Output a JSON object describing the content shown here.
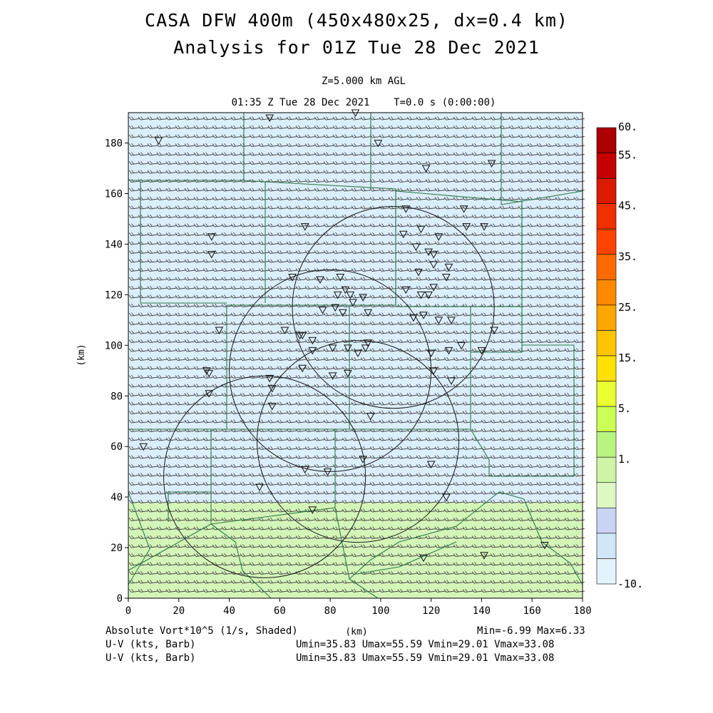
{
  "title_line1": "CASA DFW 400m (450x480x25, dx=0.4 km)",
  "title_line2": "Analysis for 01Z Tue 28 Dec 2021",
  "level": "Z=5.000 km AGL",
  "valid_time": "01:35 Z Tue 28 Dec 2021    T=0.0 s (0:00:00)",
  "axes": {
    "xlabel": "(km)",
    "ylabel": "(km)",
    "xlim": [
      0,
      180
    ],
    "ylim": [
      0,
      192
    ],
    "xticks": [
      "0",
      "20",
      "40",
      "60",
      "80",
      "100",
      "120",
      "140",
      "160",
      "180"
    ],
    "yticks": [
      "0",
      "20",
      "40",
      "60",
      "80",
      "100",
      "120",
      "140",
      "160",
      "180"
    ]
  },
  "colorbar": {
    "labels": [
      "60.",
      "55.",
      "45.",
      "35.",
      "25.",
      "15.",
      "5.",
      "1.",
      "-10."
    ],
    "colors": [
      "#aa0000",
      "#c40000",
      "#dc1a00",
      "#f03000",
      "#ff4400",
      "#ff6a00",
      "#ff8a00",
      "#ffa500",
      "#ffc400",
      "#ffe000",
      "#eaff30",
      "#ccff55",
      "#b8f580",
      "#ccf5a5",
      "#ddf8c5",
      "#c9d4f5",
      "#d2e6f7",
      "#e2f3fb"
    ]
  },
  "field": {
    "name": "Absolute Vort*10^5 (1/s, Shaded)",
    "min_max": "Min=-6.99 Max=6.33",
    "background_color": "#dbeefb",
    "south_band_color": "#d4f5b8",
    "wind_line1_label": "U-V (kts, Barb)",
    "wind_line1_stats": "Umin=35.83 Umax=55.59 Vmin=29.01 Vmax=33.08",
    "wind_line2_label": "U-V (kts, Barb)",
    "wind_line2_stats": "Umin=35.83 Umax=55.59 Vmin=29.01 Vmax=33.08"
  },
  "radar_rings": [
    {
      "cx_km": 105,
      "cy_km": 115,
      "r_km": 40
    },
    {
      "cx_km": 80,
      "cy_km": 90,
      "r_km": 40
    },
    {
      "cx_km": 91,
      "cy_km": 62,
      "r_km": 40
    },
    {
      "cx_km": 54,
      "cy_km": 48,
      "r_km": 40
    }
  ],
  "station_markers_km": [
    [
      56,
      190
    ],
    [
      90,
      192
    ],
    [
      12,
      181
    ],
    [
      99,
      180
    ],
    [
      118,
      170
    ],
    [
      144,
      172
    ],
    [
      33,
      143
    ],
    [
      33,
      136
    ],
    [
      70,
      147
    ],
    [
      110,
      154
    ],
    [
      133,
      154
    ],
    [
      134,
      147
    ],
    [
      141,
      147
    ],
    [
      109,
      144
    ],
    [
      116,
      146
    ],
    [
      123,
      143
    ],
    [
      114,
      139
    ],
    [
      119,
      137
    ],
    [
      121,
      136
    ],
    [
      121,
      132
    ],
    [
      127,
      131
    ],
    [
      115,
      129
    ],
    [
      126,
      127
    ],
    [
      65,
      127
    ],
    [
      76,
      126
    ],
    [
      84,
      127
    ],
    [
      86,
      122
    ],
    [
      83,
      120
    ],
    [
      88,
      120
    ],
    [
      89,
      117
    ],
    [
      93,
      119
    ],
    [
      110,
      122
    ],
    [
      116,
      120
    ],
    [
      119,
      120
    ],
    [
      121,
      123
    ],
    [
      82,
      115
    ],
    [
      77,
      114
    ],
    [
      85,
      113
    ],
    [
      95,
      113
    ],
    [
      113,
      111
    ],
    [
      117,
      112
    ],
    [
      123,
      110
    ],
    [
      128,
      110
    ],
    [
      36,
      106
    ],
    [
      62,
      106
    ],
    [
      69,
      104
    ],
    [
      73,
      102
    ],
    [
      68,
      104
    ],
    [
      73,
      98
    ],
    [
      81,
      99
    ],
    [
      87,
      99
    ],
    [
      91,
      97
    ],
    [
      94,
      99
    ],
    [
      95,
      101
    ],
    [
      120,
      97
    ],
    [
      127,
      98
    ],
    [
      132,
      100
    ],
    [
      140,
      98
    ],
    [
      145,
      106
    ],
    [
      31,
      90
    ],
    [
      32,
      89
    ],
    [
      69,
      91
    ],
    [
      81,
      88
    ],
    [
      87,
      89
    ],
    [
      121,
      90
    ],
    [
      128,
      86
    ],
    [
      32,
      81
    ],
    [
      56,
      87
    ],
    [
      57,
      83
    ],
    [
      96,
      72
    ],
    [
      57,
      76
    ],
    [
      6,
      60
    ],
    [
      93,
      55
    ],
    [
      120,
      53
    ],
    [
      70,
      51
    ],
    [
      79,
      50
    ],
    [
      52,
      44
    ],
    [
      73,
      35
    ],
    [
      126,
      40
    ],
    [
      117,
      16
    ],
    [
      141,
      17
    ],
    [
      165,
      21
    ]
  ]
}
